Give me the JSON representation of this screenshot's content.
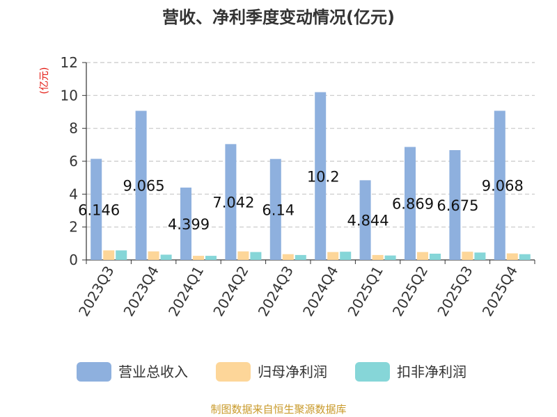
{
  "chart_data": {
    "type": "bar",
    "title": "营收、净利季度变动情况(亿元)",
    "ylabel": "(亿元)",
    "xlabel": "",
    "ylim": [
      0,
      12
    ],
    "yticks": [
      0,
      2,
      4,
      6,
      8,
      10,
      12
    ],
    "grid": true,
    "legend_position": "bottom",
    "categories": [
      "2023Q3",
      "2023Q4",
      "2024Q1",
      "2024Q2",
      "2024Q3",
      "2024Q4",
      "2025Q1",
      "2025Q2",
      "2025Q3",
      "2025Q4"
    ],
    "series": [
      {
        "name": "营业总收入",
        "color": "#8eb0de",
        "values": [
          6.146,
          9.065,
          4.399,
          7.042,
          6.14,
          10.2,
          4.844,
          6.869,
          6.675,
          9.068
        ],
        "labels": [
          "6.146",
          "9.065",
          "4.399",
          "7.042",
          "6.14",
          "10.2",
          "4.844",
          "6.869",
          "6.675",
          "9.068"
        ]
      },
      {
        "name": "归母净利润",
        "color": "#fdd699",
        "values": [
          0.58,
          0.52,
          0.25,
          0.52,
          0.35,
          0.48,
          0.3,
          0.48,
          0.5,
          0.4
        ]
      },
      {
        "name": "扣非净利润",
        "color": "#86d6d8",
        "values": [
          0.58,
          0.32,
          0.25,
          0.48,
          0.3,
          0.5,
          0.27,
          0.38,
          0.45,
          0.35
        ]
      }
    ],
    "source": "制图数据来自恒生聚源数据库"
  }
}
